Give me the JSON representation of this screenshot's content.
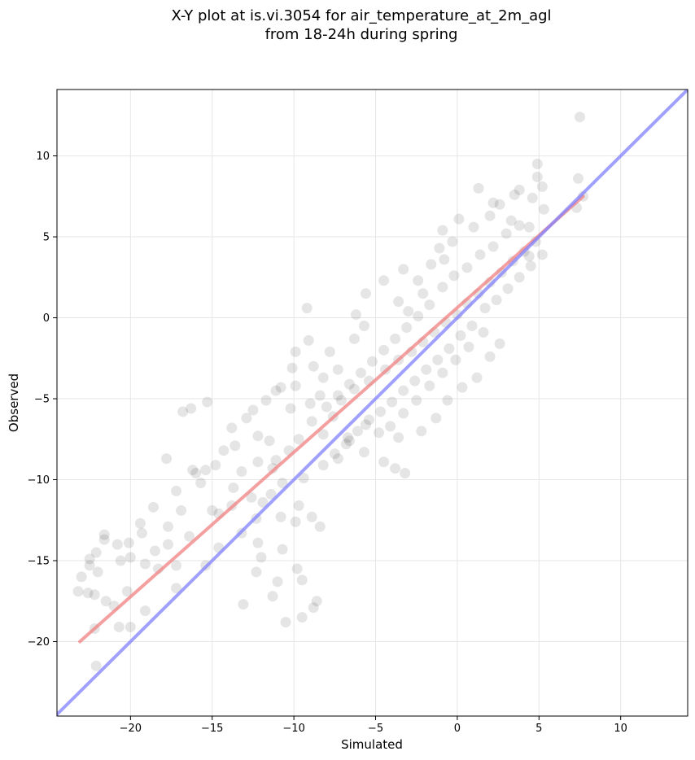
{
  "colors": {
    "points": "#000000",
    "fit_line": "#f08080",
    "identity_line": "#8080ff",
    "grid": "#e6e6e6"
  },
  "chart_data": {
    "type": "scatter",
    "title": [
      "X-Y plot at is.vi.3054 for air_temperature_at_2m_agl",
      "from 18-24h during spring"
    ],
    "xlabel": "Simulated",
    "ylabel": "Observed",
    "xlim": [
      -24.5,
      14.1
    ],
    "ylim": [
      -24.6,
      14.1
    ],
    "x_ticks": [
      -20,
      -15,
      -10,
      -5,
      0,
      5,
      10
    ],
    "y_ticks": [
      -20,
      -15,
      -10,
      -5,
      0,
      5,
      10
    ],
    "x_tick_labels": [
      "−20",
      "−15",
      "−10",
      "−5",
      "0",
      "5",
      "10"
    ],
    "y_tick_labels": [
      "−20",
      "−15",
      "−10",
      "−5",
      "0",
      "5",
      "10"
    ],
    "grid": true,
    "lines": [
      {
        "role": "fit",
        "x": [
          -23.1,
          7.7
        ],
        "y": [
          -20.0,
          7.5
        ]
      },
      {
        "role": "identity",
        "x": [
          -24.5,
          14.1
        ],
        "y": [
          -24.5,
          14.1
        ]
      }
    ],
    "point_style": {
      "alpha": 0.1
    },
    "points": [
      [
        7.5,
        12.4
      ],
      [
        4.9,
        9.5
      ],
      [
        4.9,
        8.7
      ],
      [
        5.2,
        8.1
      ],
      [
        1.3,
        8.0
      ],
      [
        7.4,
        8.6
      ],
      [
        3.8,
        7.9
      ],
      [
        3.5,
        7.6
      ],
      [
        4.6,
        7.4
      ],
      [
        2.2,
        7.1
      ],
      [
        2.6,
        7.0
      ],
      [
        5.3,
        6.7
      ],
      [
        7.7,
        7.5
      ],
      [
        7.3,
        6.8
      ],
      [
        2.0,
        6.3
      ],
      [
        0.1,
        6.1
      ],
      [
        -0.9,
        5.4
      ],
      [
        3.3,
        6.0
      ],
      [
        1.0,
        5.6
      ],
      [
        4.4,
        5.6
      ],
      [
        4.4,
        3.8
      ],
      [
        -3.3,
        3.0
      ],
      [
        -1.6,
        3.3
      ],
      [
        -2.4,
        2.3
      ],
      [
        -4.5,
        2.3
      ],
      [
        -5.6,
        1.5
      ],
      [
        -1.1,
        4.3
      ],
      [
        -0.3,
        4.7
      ],
      [
        -0.8,
        3.6
      ],
      [
        -2.1,
        1.5
      ],
      [
        -3.6,
        1.0
      ],
      [
        -3.0,
        0.4
      ],
      [
        -6.2,
        0.2
      ],
      [
        -9.2,
        0.6
      ],
      [
        -5.7,
        -0.5
      ],
      [
        -6.3,
        -1.3
      ],
      [
        -7.8,
        -2.1
      ],
      [
        -9.1,
        -1.4
      ],
      [
        -9.9,
        -2.1
      ],
      [
        -8.8,
        -3.0
      ],
      [
        -10.1,
        -3.1
      ],
      [
        -8.2,
        -3.7
      ],
      [
        -7.3,
        -3.2
      ],
      [
        -9.9,
        -4.2
      ],
      [
        -10.8,
        -4.3
      ],
      [
        -8.4,
        -4.8
      ],
      [
        -10.2,
        -5.6
      ],
      [
        -11.1,
        -4.5
      ],
      [
        -11.7,
        -5.1
      ],
      [
        -9.0,
        -5.3
      ],
      [
        -15.3,
        -5.2
      ],
      [
        -16.3,
        -5.6
      ],
      [
        -16.8,
        -5.8
      ],
      [
        -12.5,
        -5.7
      ],
      [
        -12.9,
        -6.2
      ],
      [
        -13.8,
        -6.8
      ],
      [
        -12.2,
        -7.3
      ],
      [
        -11.5,
        -7.6
      ],
      [
        -13.6,
        -7.9
      ],
      [
        -14.3,
        -8.2
      ],
      [
        -12.2,
        -8.9
      ],
      [
        -14.8,
        -9.1
      ],
      [
        -13.2,
        -9.5
      ],
      [
        -11.3,
        -9.3
      ],
      [
        -15.4,
        -9.4
      ],
      [
        -16.2,
        -9.4
      ],
      [
        -16.0,
        -9.6
      ],
      [
        -17.8,
        -8.7
      ],
      [
        -15.7,
        -10.2
      ],
      [
        -13.7,
        -10.5
      ],
      [
        -11.9,
        -11.4
      ],
      [
        -9.7,
        -11.6
      ],
      [
        -10.8,
        -12.3
      ],
      [
        -8.9,
        -12.3
      ],
      [
        -9.9,
        -12.6
      ],
      [
        -8.4,
        -12.9
      ],
      [
        -12.3,
        -12.4
      ],
      [
        -14.6,
        -12.1
      ],
      [
        -16.9,
        -11.9
      ],
      [
        -17.2,
        -10.7
      ],
      [
        -18.6,
        -11.7
      ],
      [
        -17.7,
        -12.9
      ],
      [
        -19.4,
        -12.7
      ],
      [
        -19.3,
        -13.3
      ],
      [
        -21.6,
        -13.4
      ],
      [
        -21.6,
        -13.7
      ],
      [
        -20.1,
        -13.9
      ],
      [
        -20.8,
        -14.0
      ],
      [
        -22.1,
        -14.5
      ],
      [
        -22.5,
        -14.9
      ],
      [
        -23.0,
        -16.0
      ],
      [
        -22.0,
        -15.7
      ],
      [
        -22.5,
        -15.3
      ],
      [
        -20.6,
        -15.0
      ],
      [
        -20.0,
        -14.8
      ],
      [
        -19.1,
        -15.2
      ],
      [
        -18.3,
        -15.5
      ],
      [
        -17.2,
        -15.3
      ],
      [
        -15.4,
        -15.3
      ],
      [
        -14.6,
        -14.2
      ],
      [
        -13.2,
        -13.3
      ],
      [
        -12.2,
        -13.9
      ],
      [
        -10.7,
        -14.3
      ],
      [
        -12.0,
        -14.8
      ],
      [
        -12.3,
        -15.7
      ],
      [
        -11.0,
        -16.3
      ],
      [
        -13.1,
        -17.7
      ],
      [
        -11.3,
        -17.2
      ],
      [
        -9.8,
        -15.5
      ],
      [
        -9.5,
        -16.2
      ],
      [
        -8.6,
        -17.5
      ],
      [
        -8.8,
        -17.9
      ],
      [
        -9.5,
        -18.5
      ],
      [
        -10.5,
        -18.8
      ],
      [
        -17.2,
        -16.7
      ],
      [
        -19.1,
        -18.1
      ],
      [
        -20.0,
        -19.1
      ],
      [
        -20.7,
        -19.1
      ],
      [
        -21.0,
        -17.8
      ],
      [
        -21.5,
        -17.5
      ],
      [
        -22.2,
        -17.1
      ],
      [
        -22.6,
        -17.0
      ],
      [
        -23.2,
        -16.9
      ],
      [
        -22.2,
        -19.2
      ],
      [
        -22.1,
        -21.5
      ],
      [
        -20.2,
        -16.9
      ],
      [
        -18.5,
        -14.4
      ],
      [
        -17.7,
        -14.0
      ],
      [
        -16.4,
        -13.5
      ],
      [
        -15.0,
        -11.9
      ],
      [
        -13.8,
        -11.6
      ],
      [
        -12.6,
        -11.1
      ],
      [
        -11.4,
        -10.9
      ],
      [
        -10.7,
        -10.2
      ],
      [
        -9.4,
        -9.9
      ],
      [
        -8.2,
        -9.1
      ],
      [
        -7.3,
        -8.7
      ],
      [
        -6.6,
        -7.6
      ],
      [
        -5.7,
        -8.3
      ],
      [
        -4.5,
        -8.9
      ],
      [
        -3.8,
        -9.3
      ],
      [
        -3.2,
        -9.6
      ],
      [
        -3.6,
        -7.4
      ],
      [
        -4.8,
        -7.1
      ],
      [
        -5.6,
        -6.6
      ],
      [
        -6.7,
        -7.4
      ],
      [
        -7.6,
        -6.1
      ],
      [
        -7.1,
        -5.1
      ],
      [
        -6.3,
        -4.4
      ],
      [
        -5.4,
        -3.9
      ],
      [
        -4.4,
        -3.2
      ],
      [
        -3.6,
        -2.6
      ],
      [
        -2.8,
        -2.1
      ],
      [
        -2.1,
        -1.5
      ],
      [
        -1.4,
        -0.9
      ],
      [
        -0.7,
        -0.3
      ],
      [
        0.0,
        0.2
      ],
      [
        0.6,
        0.9
      ],
      [
        1.3,
        1.5
      ],
      [
        2.0,
        2.2
      ],
      [
        2.7,
        2.8
      ],
      [
        3.4,
        3.5
      ],
      [
        4.1,
        4.1
      ],
      [
        4.8,
        4.7
      ],
      [
        1.7,
        0.6
      ],
      [
        0.9,
        -0.5
      ],
      [
        0.2,
        -1.1
      ],
      [
        -0.5,
        -1.9
      ],
      [
        -1.2,
        -2.6
      ],
      [
        -1.9,
        -3.2
      ],
      [
        -2.6,
        -3.9
      ],
      [
        -3.3,
        -4.5
      ],
      [
        -4.0,
        -5.2
      ],
      [
        -4.7,
        -5.8
      ],
      [
        -5.4,
        -6.3
      ],
      [
        -6.1,
        -7.0
      ],
      [
        -6.8,
        -7.8
      ],
      [
        -7.5,
        -8.4
      ],
      [
        -8.2,
        -7.2
      ],
      [
        -8.9,
        -6.4
      ],
      [
        -9.7,
        -7.5
      ],
      [
        -10.3,
        -8.2
      ],
      [
        -11.1,
        -8.8
      ],
      [
        -0.9,
        1.9
      ],
      [
        -0.2,
        2.6
      ],
      [
        0.6,
        3.1
      ],
      [
        1.4,
        3.9
      ],
      [
        2.2,
        4.4
      ],
      [
        3.0,
        5.2
      ],
      [
        3.8,
        5.7
      ],
      [
        -1.7,
        0.8
      ],
      [
        -2.4,
        0.1
      ],
      [
        -3.1,
        -0.6
      ],
      [
        -3.8,
        -1.3
      ],
      [
        -4.5,
        -2.0
      ],
      [
        -5.2,
        -2.7
      ],
      [
        -5.9,
        -3.4
      ],
      [
        -6.6,
        -4.1
      ],
      [
        -7.3,
        -4.8
      ],
      [
        -8.0,
        -5.5
      ],
      [
        2.4,
        1.1
      ],
      [
        3.1,
        1.8
      ],
      [
        3.8,
        2.5
      ],
      [
        4.5,
        3.2
      ],
      [
        5.2,
        3.9
      ],
      [
        1.6,
        -0.9
      ],
      [
        0.7,
        -1.8
      ],
      [
        -0.1,
        -2.6
      ],
      [
        -0.9,
        -3.4
      ],
      [
        -1.7,
        -4.2
      ],
      [
        -2.5,
        -5.1
      ],
      [
        -3.3,
        -5.9
      ],
      [
        -4.1,
        -6.7
      ],
      [
        -2.2,
        -7.0
      ],
      [
        -1.3,
        -6.2
      ],
      [
        -0.6,
        -5.1
      ],
      [
        0.3,
        -4.3
      ],
      [
        1.2,
        -3.7
      ],
      [
        2.0,
        -2.4
      ],
      [
        2.6,
        -1.6
      ]
    ]
  }
}
